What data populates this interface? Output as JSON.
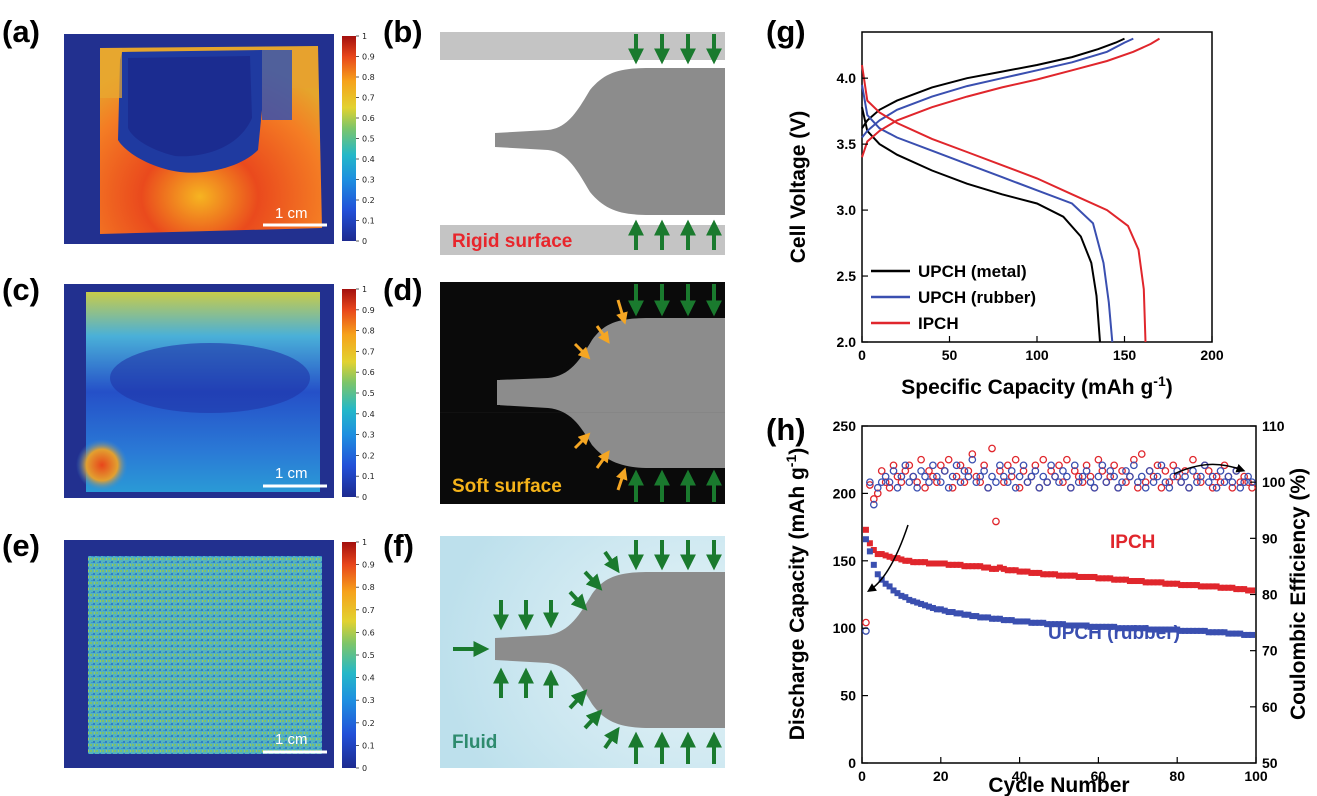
{
  "panels": {
    "a": "(a)",
    "b": "(b)",
    "c": "(c)",
    "d": "(d)",
    "e": "(e)",
    "f": "(f)",
    "g": "(g)",
    "h": "(h)"
  },
  "colorbar_ticks": [
    "0",
    "0.1",
    "0.2",
    "0.3",
    "0.4",
    "0.5",
    "0.6",
    "0.7",
    "0.8",
    "0.9",
    "1"
  ],
  "scale_bar_label": "1 cm",
  "diagram_labels": {
    "b": "Rigid surface",
    "d": "Soft surface",
    "f": "Fluid"
  },
  "colors": {
    "map_background": "#1f2f96",
    "rigid_plate": "#c4c4c4",
    "soft_surface_bg": "#0a0a0a",
    "fluid_bg": "#cfe8f1",
    "part_gray": "#8c8c8c",
    "arrow_green": "#1a7a2e",
    "arrow_orange": "#f5a623",
    "label_red": "#e8262c",
    "label_orange": "#f5b31a",
    "label_teal": "#2e8b6e"
  },
  "chart_data": [
    {
      "type": "line",
      "panel": "g",
      "xlabel": "Specific Capacity (mAh g",
      "xlabel_sup": "-1",
      "xlabel_end": ")",
      "ylabel": "Cell Voltage (V)",
      "xlim": [
        0,
        200
      ],
      "ylim": [
        2.0,
        4.35
      ],
      "xticks": [
        "0",
        "50",
        "100",
        "150",
        "200"
      ],
      "yticks": [
        "2.0",
        "2.5",
        "3.0",
        "3.5",
        "4.0"
      ],
      "legend_position": "bottom-left",
      "series": [
        {
          "name": "UPCH (metal)",
          "color": "#000000",
          "charge": [
            [
              0,
              3.62
            ],
            [
              3,
              3.68
            ],
            [
              10,
              3.76
            ],
            [
              20,
              3.83
            ],
            [
              40,
              3.93
            ],
            [
              60,
              4.0
            ],
            [
              80,
              4.05
            ],
            [
              100,
              4.1
            ],
            [
              120,
              4.16
            ],
            [
              135,
              4.22
            ],
            [
              145,
              4.27
            ],
            [
              150,
              4.3
            ]
          ],
          "discharge": [
            [
              0,
              3.78
            ],
            [
              3,
              3.6
            ],
            [
              10,
              3.5
            ],
            [
              20,
              3.42
            ],
            [
              40,
              3.3
            ],
            [
              60,
              3.2
            ],
            [
              80,
              3.12
            ],
            [
              100,
              3.05
            ],
            [
              115,
              2.95
            ],
            [
              125,
              2.8
            ],
            [
              131,
              2.6
            ],
            [
              134,
              2.35
            ],
            [
              136,
              2.0
            ]
          ]
        },
        {
          "name": "UPCH (rubber)",
          "color": "#3a4fb0",
          "charge": [
            [
              0,
              3.55
            ],
            [
              3,
              3.6
            ],
            [
              10,
              3.68
            ],
            [
              20,
              3.76
            ],
            [
              40,
              3.86
            ],
            [
              60,
              3.94
            ],
            [
              80,
              4.0
            ],
            [
              100,
              4.06
            ],
            [
              120,
              4.12
            ],
            [
              140,
              4.2
            ],
            [
              150,
              4.27
            ],
            [
              155,
              4.3
            ]
          ],
          "discharge": [
            [
              0,
              3.95
            ],
            [
              3,
              3.72
            ],
            [
              10,
              3.62
            ],
            [
              20,
              3.55
            ],
            [
              40,
              3.45
            ],
            [
              60,
              3.35
            ],
            [
              80,
              3.25
            ],
            [
              100,
              3.15
            ],
            [
              120,
              3.05
            ],
            [
              132,
              2.9
            ],
            [
              138,
              2.6
            ],
            [
              141,
              2.3
            ],
            [
              143,
              2.0
            ]
          ]
        },
        {
          "name": "IPCH",
          "color": "#e0262c",
          "charge": [
            [
              0,
              3.4
            ],
            [
              3,
              3.52
            ],
            [
              10,
              3.6
            ],
            [
              20,
              3.68
            ],
            [
              40,
              3.78
            ],
            [
              60,
              3.86
            ],
            [
              80,
              3.93
            ],
            [
              100,
              3.99
            ],
            [
              120,
              4.06
            ],
            [
              140,
              4.13
            ],
            [
              155,
              4.2
            ],
            [
              165,
              4.26
            ],
            [
              170,
              4.3
            ]
          ],
          "discharge": [
            [
              0,
              4.1
            ],
            [
              3,
              3.83
            ],
            [
              10,
              3.74
            ],
            [
              20,
              3.66
            ],
            [
              40,
              3.54
            ],
            [
              60,
              3.44
            ],
            [
              80,
              3.34
            ],
            [
              100,
              3.24
            ],
            [
              120,
              3.12
            ],
            [
              140,
              3.0
            ],
            [
              152,
              2.88
            ],
            [
              158,
              2.7
            ],
            [
              161,
              2.4
            ],
            [
              162,
              2.0
            ]
          ]
        }
      ]
    },
    {
      "type": "scatter",
      "panel": "h",
      "xlabel": "Cycle Number",
      "ylabel": "Discharge Capacity (mAh g",
      "ylabel_sup": "-1",
      "ylabel_end": ")",
      "ylabel_right": "Coulombic Efficiency (%)",
      "xlim": [
        0,
        100
      ],
      "ylim": [
        0,
        250
      ],
      "ylim_right": [
        50,
        110
      ],
      "xticks": [
        "0",
        "20",
        "40",
        "60",
        "80",
        "100"
      ],
      "yticks": [
        "0",
        "50",
        "100",
        "150",
        "200",
        "250"
      ],
      "yticks_right": [
        "50",
        "60",
        "70",
        "80",
        "90",
        "100",
        "110"
      ],
      "series": [
        {
          "name": "IPCH",
          "color": "#e0262c",
          "capacity": [
            173,
            163,
            158,
            155,
            155,
            154,
            153,
            152,
            152,
            151,
            150,
            150,
            149,
            149,
            149,
            149,
            148,
            148,
            148,
            148,
            148,
            147,
            147,
            147,
            147,
            146,
            146,
            146,
            146,
            146,
            145,
            145,
            144,
            144,
            145,
            144,
            143,
            143,
            143,
            142,
            142,
            142,
            141,
            141,
            141,
            140,
            140,
            140,
            140,
            139,
            139,
            139,
            139,
            139,
            138,
            138,
            138,
            138,
            138,
            137,
            137,
            137,
            137,
            136,
            136,
            136,
            136,
            135,
            135,
            135,
            135,
            134,
            134,
            134,
            134,
            134,
            133,
            133,
            133,
            133,
            132,
            132,
            132,
            132,
            132,
            131,
            131,
            131,
            131,
            131,
            130,
            130,
            130,
            130,
            129,
            129,
            129,
            128,
            128
          ],
          "coulombic": [
            75,
            99.5,
            97,
            98,
            102,
            100,
            99,
            103,
            101,
            100,
            102,
            103,
            101,
            100,
            104,
            99,
            102,
            101,
            100,
            103,
            102,
            104,
            99,
            101,
            103,
            100,
            102,
            105,
            101,
            100,
            103,
            99,
            106,
            93,
            102,
            100,
            103,
            101,
            104,
            99,
            102,
            100,
            101,
            103,
            99,
            104,
            100,
            102,
            101,
            103,
            100,
            104,
            99,
            102,
            101,
            100,
            103,
            101,
            99,
            104,
            102,
            100,
            101,
            103,
            99,
            102,
            100,
            101,
            104,
            99,
            105,
            100,
            102,
            101,
            103,
            99,
            102,
            100,
            103,
            101,
            100,
            102,
            99,
            104,
            101,
            100,
            103,
            102,
            99,
            101,
            100,
            103,
            101,
            99,
            102,
            100,
            101,
            100,
            99
          ]
        },
        {
          "name": "UPCH (rubber)",
          "color": "#3a4fb0",
          "capacity": [
            166,
            157,
            147,
            140,
            136,
            133,
            131,
            128,
            126,
            124,
            123,
            121,
            120,
            119,
            118,
            117,
            116,
            115,
            114,
            114,
            113,
            112,
            112,
            111,
            111,
            110,
            110,
            109,
            109,
            108,
            108,
            108,
            107,
            107,
            107,
            106,
            106,
            106,
            105,
            105,
            105,
            105,
            104,
            104,
            104,
            104,
            103,
            103,
            103,
            103,
            103,
            102,
            102,
            102,
            102,
            102,
            102,
            101,
            101,
            101,
            101,
            101,
            101,
            101,
            100,
            100,
            100,
            100,
            100,
            100,
            100,
            100,
            99,
            99,
            99,
            99,
            99,
            99,
            99,
            99,
            98,
            98,
            98,
            98,
            98,
            98,
            98,
            97,
            97,
            97,
            97,
            97,
            96,
            96,
            96,
            96,
            95,
            95,
            95
          ],
          "coulombic": [
            73.5,
            100,
            96,
            99,
            100,
            101,
            100,
            102,
            99,
            101,
            103,
            100,
            101,
            99,
            102,
            101,
            100,
            103,
            101,
            100,
            102,
            99,
            101,
            103,
            100,
            102,
            101,
            104,
            100,
            101,
            102,
            99,
            101,
            100,
            103,
            101,
            100,
            102,
            99,
            101,
            103,
            100,
            101,
            102,
            99,
            101,
            100,
            103,
            101,
            100,
            102,
            101,
            99,
            103,
            100,
            101,
            102,
            100,
            99,
            101,
            103,
            100,
            102,
            101,
            99,
            100,
            102,
            101,
            103,
            100,
            101,
            99,
            102,
            100,
            101,
            103,
            100,
            99,
            101,
            102,
            100,
            101,
            99,
            102,
            100,
            101,
            103,
            100,
            101,
            99,
            102,
            100,
            101,
            100,
            102,
            99,
            100,
            101,
            100
          ]
        }
      ],
      "annotations": [
        "IPCH",
        "UPCH (rubber)"
      ]
    }
  ]
}
